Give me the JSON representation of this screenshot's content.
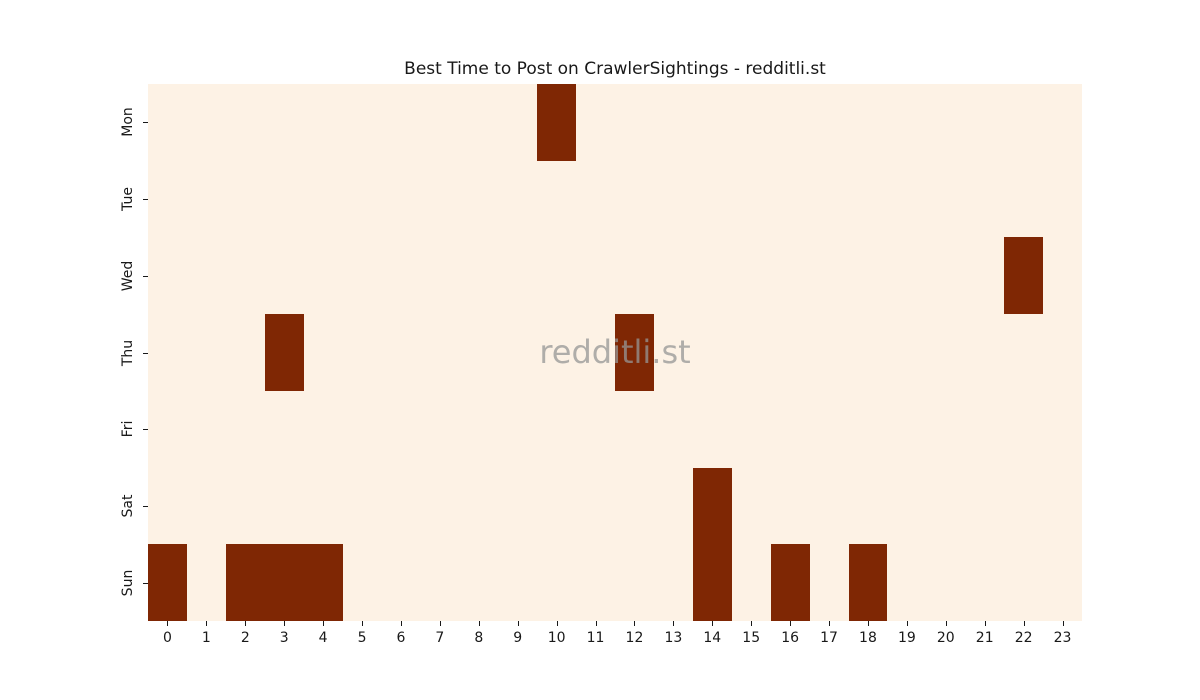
{
  "chart_data": {
    "type": "heatmap",
    "title": "Best Time to Post on CrawlerSightings - redditli.st",
    "watermark": "redditli.st",
    "x_labels": [
      "0",
      "1",
      "2",
      "3",
      "4",
      "5",
      "6",
      "7",
      "8",
      "9",
      "10",
      "11",
      "12",
      "13",
      "14",
      "15",
      "16",
      "17",
      "18",
      "19",
      "20",
      "21",
      "22",
      "23"
    ],
    "y_labels": [
      "Mon",
      "Tue",
      "Wed",
      "Thu",
      "Fri",
      "Sat",
      "Sun"
    ],
    "matrix": [
      [
        0,
        0,
        0,
        0,
        0,
        0,
        0,
        0,
        0,
        0,
        1,
        0,
        0,
        0,
        0,
        0,
        0,
        0,
        0,
        0,
        0,
        0,
        0,
        0
      ],
      [
        0,
        0,
        0,
        0,
        0,
        0,
        0,
        0,
        0,
        0,
        0,
        0,
        0,
        0,
        0,
        0,
        0,
        0,
        0,
        0,
        0,
        0,
        0,
        0
      ],
      [
        0,
        0,
        0,
        0,
        0,
        0,
        0,
        0,
        0,
        0,
        0,
        0,
        0,
        0,
        0,
        0,
        0,
        0,
        0,
        0,
        0,
        0,
        1,
        0
      ],
      [
        0,
        0,
        0,
        1,
        0,
        0,
        0,
        0,
        0,
        0,
        0,
        0,
        1,
        0,
        0,
        0,
        0,
        0,
        0,
        0,
        0,
        0,
        0,
        0
      ],
      [
        0,
        0,
        0,
        0,
        0,
        0,
        0,
        0,
        0,
        0,
        0,
        0,
        0,
        0,
        0,
        0,
        0,
        0,
        0,
        0,
        0,
        0,
        0,
        0
      ],
      [
        0,
        0,
        0,
        0,
        0,
        0,
        0,
        0,
        0,
        0,
        0,
        0,
        0,
        0,
        1,
        0,
        0,
        0,
        0,
        0,
        0,
        0,
        0,
        0
      ],
      [
        1,
        0,
        1,
        1,
        1,
        0,
        0,
        0,
        0,
        0,
        0,
        0,
        0,
        0,
        1,
        0,
        1,
        0,
        1,
        0,
        0,
        0,
        0,
        0
      ]
    ],
    "value_range": [
      0,
      1
    ],
    "legend": false,
    "grid": false,
    "colors": {
      "figure_background": "#ffffff",
      "plot_background": "#fdf2e5",
      "cell_high": "#7f2704",
      "text": "#191919",
      "tick": "#191919",
      "watermark": "#969696"
    }
  }
}
